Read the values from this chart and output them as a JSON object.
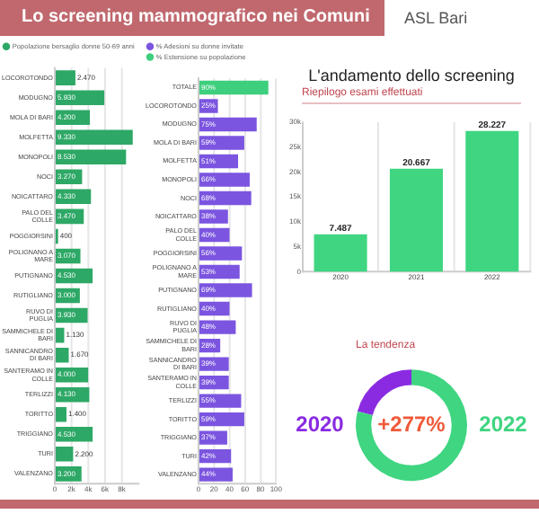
{
  "chart_data": [
    {
      "type": "bar",
      "orientation": "horizontal",
      "title": "Lo screening mammografico nei Comuni",
      "annotations": [
        "ASL Bari"
      ],
      "legend": "top left",
      "grid": "x",
      "categories": [
        "LOCOROTONDO",
        "MODUGNO",
        "MOLA DI BARI",
        "MOLFETTA",
        "MONOPOLI",
        "NOCI",
        "NOICATTARO",
        "PALO DEL COLLE",
        "POGGIORSINI",
        "POLIGNANO A MARE",
        "PUTIGNANO",
        "RUTIGLIANO",
        "RUVO DI PUGLIA",
        "SAMMICHELE DI BARI",
        "SANNICANDRO DI BARI",
        "SANTERAMO IN COLLE",
        "TERLIZZI",
        "TORITTO",
        "TRIGGIANO",
        "TURI",
        "VALENZANO"
      ],
      "series": [
        {
          "name": "Popolazione bersaglio donne 50-69 anni",
          "color": "#2ea866",
          "values": [
            2470,
            5930,
            4200,
            9330,
            8530,
            3270,
            4330,
            3470,
            400,
            3070,
            4530,
            3000,
            3930,
            1130,
            1670,
            4000,
            4130,
            1400,
            4530,
            2200,
            3200
          ],
          "value_labels": [
            "2.470",
            "5.930",
            "4.200",
            "9.330",
            "8.530",
            "3.270",
            "4.330",
            "3.470",
            "400",
            "3.070",
            "4.530",
            "3.000",
            "3.930",
            "1.130",
            "1.670",
            "4.000",
            "4.130",
            "1.400",
            "4.530",
            "2.200",
            "3.200"
          ]
        }
      ],
      "xlim": [
        0,
        10000
      ],
      "xticks": [
        0,
        {
          "value": 2000,
          "label": "2k"
        },
        {
          "value": 4000,
          "label": "4k"
        },
        {
          "value": 6000,
          "label": "6k"
        },
        {
          "value": 8000,
          "label": "8k"
        }
      ]
    },
    {
      "type": "bar",
      "orientation": "horizontal",
      "legend": "top left",
      "grid": "x",
      "categories": [
        "TOTALE",
        "LOCOROTONDO",
        "MODUGNO",
        "MOLA DI BARI",
        "MOLFETTA",
        "MONOPOLI",
        "NOCI",
        "NOICATTARO",
        "PALO DEL COLLE",
        "POGGIORSINI",
        "POLIGNANO A MARE",
        "PUTIGNANO",
        "RUTIGLIANO",
        "RUVO DI PUGLIA",
        "SAMMICHELE DI BARI",
        "SANNICANDRO DI BARI",
        "SANTERAMO IN COLLE",
        "TERLIZZI",
        "TORITTO",
        "TRIGGIANO",
        "TURI",
        "VALENZANO"
      ],
      "series": [
        {
          "name": "% Adesioni su donne invitate",
          "color": "#7b55e0",
          "values": [
            null,
            25,
            75,
            59,
            51,
            66,
            68,
            38,
            40,
            56,
            53,
            69,
            40,
            48,
            28,
            39,
            39,
            55,
            59,
            37,
            42,
            44
          ],
          "value_labels": [
            null,
            "25%",
            "75%",
            "59%",
            "51%",
            "66%",
            "68%",
            "38%",
            "40%",
            "56%",
            "53%",
            "69%",
            "40%",
            "48%",
            "28%",
            "39%",
            "39%",
            "55%",
            "59%",
            "37%",
            "42%",
            "44%"
          ]
        },
        {
          "name": "% Estensione su popolazione",
          "color": "#3ecf7e",
          "values": [
            90,
            null,
            null,
            null,
            null,
            null,
            null,
            null,
            null,
            null,
            null,
            null,
            null,
            null,
            null,
            null,
            null,
            null,
            null,
            null,
            null,
            null
          ],
          "value_labels": [
            "90%",
            null,
            null,
            null,
            null,
            null,
            null,
            null,
            null,
            null,
            null,
            null,
            null,
            null,
            null,
            null,
            null,
            null,
            null,
            null,
            null,
            null
          ]
        }
      ],
      "xlim": [
        0,
        100
      ],
      "xticks": [
        0,
        20,
        40,
        60,
        80,
        100
      ]
    },
    {
      "type": "bar",
      "title": "L'andamento dello screening",
      "subtitle": "Riepilogo esami effettuati",
      "categories": [
        "2020",
        "2021",
        "2022"
      ],
      "values": [
        7487,
        20667,
        28227
      ],
      "color": "#3fd581",
      "value_labels": [
        "7.487",
        "20.667",
        "28.227"
      ],
      "ylim": [
        0,
        30000
      ],
      "yticks": [
        0,
        {
          "value": 5000,
          "label": "5k"
        },
        {
          "value": 10000,
          "label": "10k"
        },
        {
          "value": 15000,
          "label": "15k"
        },
        {
          "value": 20000,
          "label": "20k"
        },
        {
          "value": 25000,
          "label": "25k"
        },
        {
          "value": 30000,
          "label": "30k"
        }
      ]
    },
    {
      "type": "donut",
      "title": "La tendenza",
      "categories": [
        "2020",
        "2022"
      ],
      "values": [
        21,
        79
      ],
      "colors": [
        "#8a2be2",
        "#3fd581"
      ],
      "annotations": [
        "+277%"
      ]
    }
  ]
}
